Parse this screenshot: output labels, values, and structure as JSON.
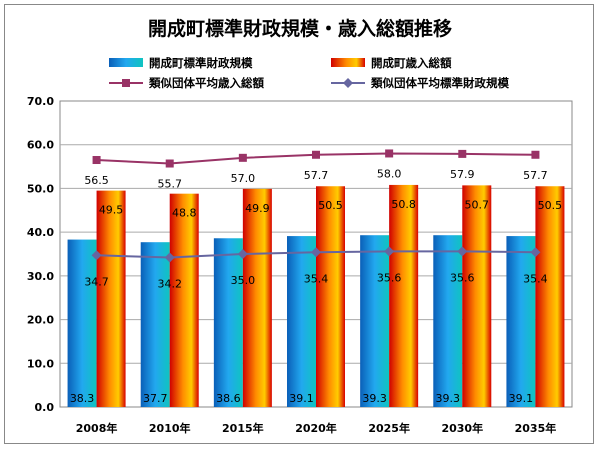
{
  "chart_data": {
    "type": "bar",
    "title": "開成町標準財政規模・歳入総額推移",
    "categories": [
      "2008年",
      "2010年",
      "2015年",
      "2020年",
      "2025年",
      "2030年",
      "2035年"
    ],
    "ylim": [
      0,
      70
    ],
    "yticks": [
      "0.0",
      "10.0",
      "20.0",
      "30.0",
      "40.0",
      "50.0",
      "60.0",
      "70.0"
    ],
    "grid": true,
    "legend_position": "top",
    "series": [
      {
        "name": "開成町標準財政規模",
        "kind": "bar",
        "color": "#1a9ae0",
        "values": [
          38.3,
          37.7,
          38.6,
          39.1,
          39.3,
          39.3,
          39.1
        ],
        "labels": [
          "38.3",
          "37.7",
          "38.6",
          "39.1",
          "39.3",
          "39.3",
          "39.1"
        ]
      },
      {
        "name": "開成町歳入総額",
        "kind": "bar",
        "color": "#f07800",
        "values": [
          49.5,
          48.8,
          49.9,
          50.5,
          50.8,
          50.7,
          50.5
        ],
        "labels": [
          "49.5",
          "48.8",
          "49.9",
          "50.5",
          "50.8",
          "50.7",
          "50.5"
        ]
      },
      {
        "name": "類似団体平均歳入総額",
        "kind": "line",
        "color": "#993366",
        "marker": "square",
        "values": [
          56.5,
          55.7,
          57.0,
          57.7,
          58.0,
          57.9,
          57.7
        ],
        "labels": [
          "56.5",
          "55.7",
          "57.0",
          "57.7",
          "58.0",
          "57.9",
          "57.7"
        ]
      },
      {
        "name": "類似団体平均標準財政規模",
        "kind": "line",
        "color": "#6666a0",
        "marker": "diamond",
        "values": [
          34.7,
          34.2,
          35.0,
          35.4,
          35.6,
          35.6,
          35.4
        ],
        "labels": [
          "34.7",
          "34.2",
          "35.0",
          "35.4",
          "35.6",
          "35.6",
          "35.4"
        ]
      }
    ]
  }
}
